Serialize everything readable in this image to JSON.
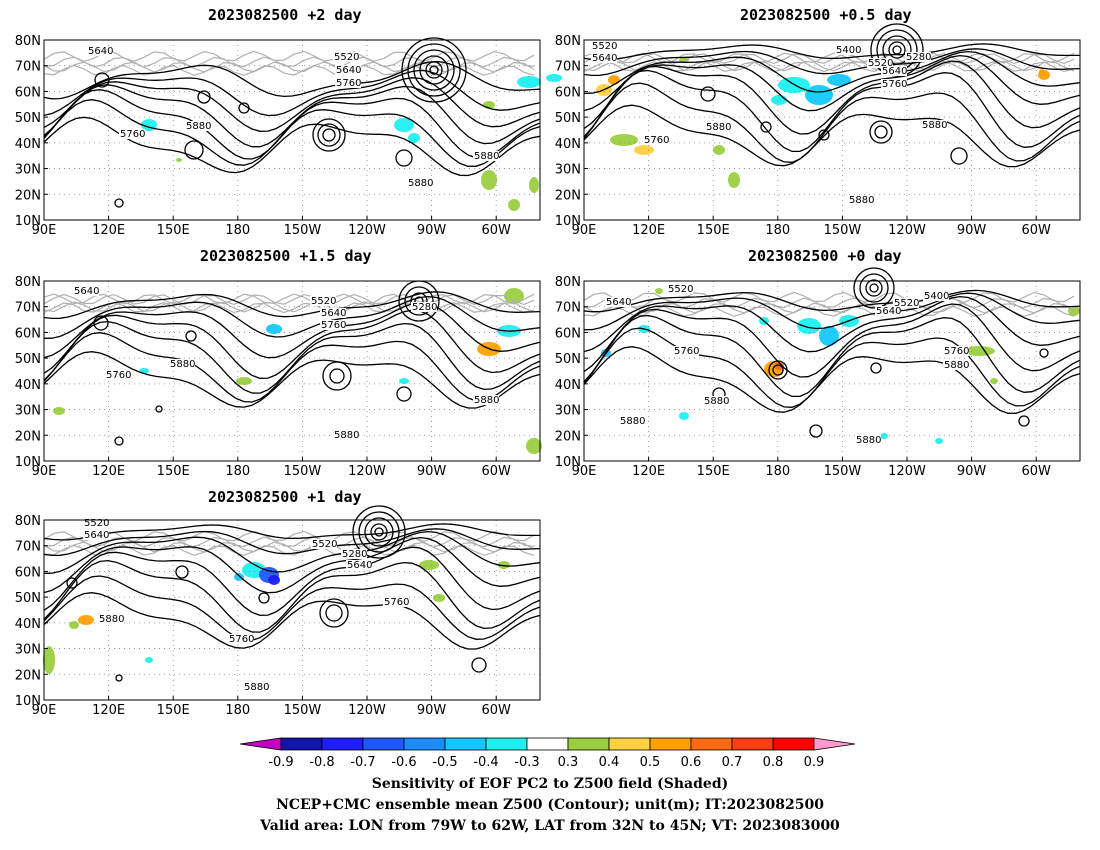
{
  "panels": [
    {
      "id": "p2day",
      "title": "2023082500 +2 day"
    },
    {
      "id": "p05day",
      "title": "2023082500 +0.5 day"
    },
    {
      "id": "p15day",
      "title": "2023082500 +1.5 day"
    },
    {
      "id": "p0day",
      "title": "2023082500 +0 day"
    },
    {
      "id": "p1day",
      "title": "2023082500 +1 day"
    }
  ],
  "axes": {
    "lat_labels": [
      "80N",
      "70N",
      "60N",
      "50N",
      "40N",
      "30N",
      "20N",
      "10N"
    ],
    "lon_labels": [
      "90E",
      "120E",
      "150E",
      "180",
      "150W",
      "120W",
      "90W",
      "60W"
    ],
    "lon_range": [
      "90E",
      "50W"
    ],
    "lat_range": [
      "10N",
      "80N"
    ],
    "grid": "dotted",
    "coastline_color": "#b0b0b0"
  },
  "contour_labels": {
    "p2day": [
      "5640",
      "5520",
      "5640",
      "5760",
      "5760",
      "5880",
      "5880",
      "5880"
    ],
    "p05day": [
      "5520",
      "5640",
      "5400",
      "5280",
      "5520",
      "5640",
      "5760",
      "5880",
      "5760",
      "5880",
      "5880"
    ],
    "p15day": [
      "5640",
      "5520",
      "5640",
      "5760",
      "5280",
      "5760",
      "5880",
      "5880",
      "5880"
    ],
    "p0day": [
      "5520",
      "5640",
      "5520",
      "5400",
      "5640",
      "5760",
      "5760",
      "5880",
      "5880",
      "5880",
      "5880"
    ],
    "p1day": [
      "5520",
      "5640",
      "5520",
      "5280",
      "5640",
      "5760",
      "5880",
      "5760",
      "5880",
      "5880"
    ]
  },
  "colorbar": {
    "ticks": [
      "-0.9",
      "-0.8",
      "-0.7",
      "-0.6",
      "-0.5",
      "-0.4",
      "-0.3",
      "0.3",
      "0.4",
      "0.5",
      "0.6",
      "0.7",
      "0.8",
      "0.9"
    ],
    "colors": [
      "#c400c4",
      "#1414aa",
      "#1e1eff",
      "#1e5aff",
      "#1e8cff",
      "#14c8ff",
      "#1ef0f0",
      "#ffffff",
      "#9ad040",
      "#ffd040",
      "#ffa000",
      "#ff6a14",
      "#ff3c14",
      "#ff0000",
      "#ff9ad0"
    ]
  },
  "captions": {
    "line1": "Sensitivity of EOF PC2 to Z500 field (Shaded)",
    "line2": "NCEP+CMC ensemble mean Z500 (Contour); unit(m); IT:2023082500",
    "line3": "Valid area: LON from 79W to 62W, LAT from 32N to 45N; VT: 2023083000"
  }
}
